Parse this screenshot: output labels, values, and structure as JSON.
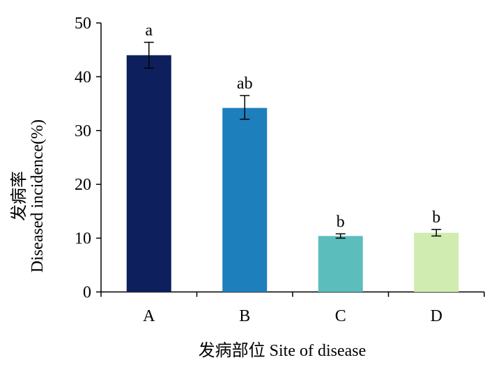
{
  "chart_data": {
    "type": "bar",
    "title": "",
    "xlabel": "发病部位 Site of disease",
    "ylabel_cn": "发病率",
    "ylabel_en": "Diseased incidence(%)",
    "ylim": [
      0,
      50
    ],
    "yticks": [
      "0",
      "10",
      "20",
      "30",
      "40",
      "50"
    ],
    "categories": [
      "A",
      "B",
      "C",
      "D"
    ],
    "values": [
      44.0,
      34.2,
      10.4,
      11.0
    ],
    "error_low": [
      41.6,
      32.1,
      10.0,
      10.4
    ],
    "error_high": [
      46.4,
      36.5,
      10.8,
      11.6
    ],
    "significance_labels": [
      "a",
      "ab",
      "b",
      "b"
    ],
    "colors": [
      "#0d1f5c",
      "#1e7fbd",
      "#5cbdbd",
      "#d0ecb0"
    ],
    "grid": false,
    "legend": "none"
  }
}
